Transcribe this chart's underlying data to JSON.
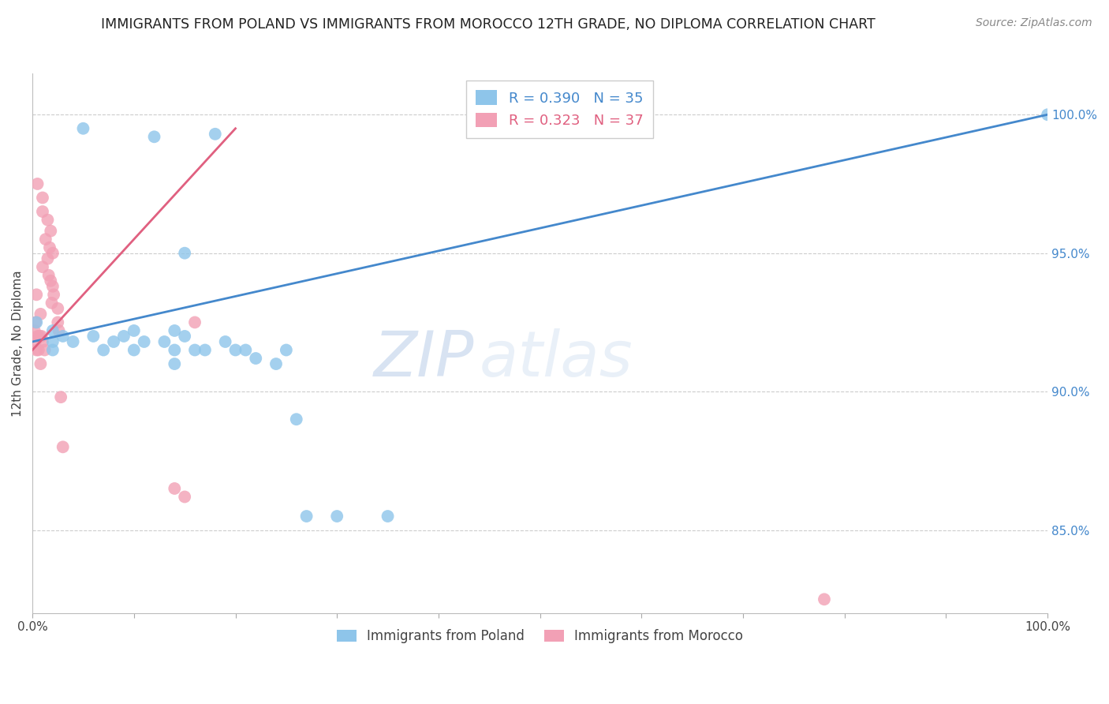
{
  "title": "IMMIGRANTS FROM POLAND VS IMMIGRANTS FROM MOROCCO 12TH GRADE, NO DIPLOMA CORRELATION CHART",
  "source": "Source: ZipAtlas.com",
  "ylabel": "12th Grade, No Diploma",
  "xlim": [
    0,
    1.0
  ],
  "ylim": [
    82,
    101.5
  ],
  "poland_R": 0.39,
  "poland_N": 35,
  "morocco_R": 0.323,
  "morocco_N": 37,
  "poland_color": "#8EC5EA",
  "morocco_color": "#F2A0B5",
  "poland_line_color": "#4488CC",
  "morocco_line_color": "#E06080",
  "legend_label_poland": "Immigrants from Poland",
  "legend_label_morocco": "Immigrants from Morocco",
  "watermark_zip": "ZIP",
  "watermark_atlas": "atlas",
  "background_color": "#ffffff",
  "grid_color": "#cccccc",
  "poland_x": [
    0.004,
    0.02,
    0.02,
    0.02,
    0.03,
    0.04,
    0.05,
    0.06,
    0.07,
    0.08,
    0.09,
    0.1,
    0.1,
    0.11,
    0.12,
    0.13,
    0.14,
    0.14,
    0.14,
    0.15,
    0.15,
    0.16,
    0.17,
    0.18,
    0.19,
    0.2,
    0.21,
    0.22,
    0.24,
    0.25,
    0.26,
    0.27,
    0.3,
    0.35,
    1.0
  ],
  "poland_y": [
    92.5,
    92.2,
    91.8,
    91.5,
    92.0,
    91.8,
    99.5,
    92.0,
    91.5,
    91.8,
    92.0,
    92.2,
    91.5,
    91.8,
    99.2,
    91.8,
    91.5,
    92.2,
    91.0,
    95.0,
    92.0,
    91.5,
    91.5,
    99.3,
    91.8,
    91.5,
    91.5,
    91.2,
    91.0,
    91.5,
    89.0,
    85.5,
    85.5,
    85.5,
    100.0
  ],
  "morocco_x": [
    0.002,
    0.003,
    0.003,
    0.004,
    0.004,
    0.005,
    0.005,
    0.006,
    0.007,
    0.008,
    0.008,
    0.009,
    0.01,
    0.01,
    0.01,
    0.01,
    0.012,
    0.013,
    0.015,
    0.015,
    0.016,
    0.017,
    0.018,
    0.018,
    0.019,
    0.02,
    0.02,
    0.021,
    0.025,
    0.025,
    0.026,
    0.028,
    0.03,
    0.14,
    0.15,
    0.16,
    0.78
  ],
  "morocco_y": [
    92.2,
    92.5,
    91.8,
    91.5,
    93.5,
    92.0,
    97.5,
    91.5,
    92.0,
    91.0,
    92.8,
    92.0,
    94.5,
    97.0,
    96.5,
    91.8,
    91.5,
    95.5,
    94.8,
    96.2,
    94.2,
    95.2,
    94.0,
    95.8,
    93.2,
    93.8,
    95.0,
    93.5,
    92.5,
    93.0,
    92.2,
    89.8,
    88.0,
    86.5,
    86.2,
    92.5,
    82.5
  ],
  "blue_line_x0": 0.0,
  "blue_line_y0": 91.8,
  "blue_line_x1": 1.0,
  "blue_line_y1": 100.0,
  "pink_line_x0": 0.0,
  "pink_line_y0": 91.5,
  "pink_line_x1": 0.2,
  "pink_line_y1": 99.5
}
